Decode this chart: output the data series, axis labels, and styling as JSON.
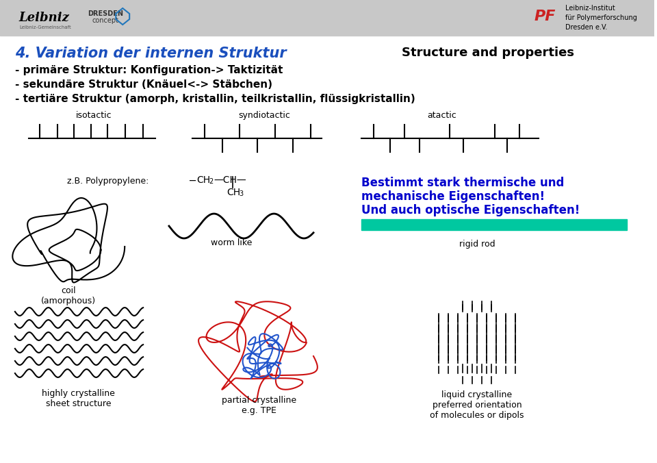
{
  "bg_color": "#ffffff",
  "header_bg": "#c8c8c8",
  "title_text": "4. Variation der internen Struktur",
  "title_color": "#1a4fbd",
  "subtitle_right": "Structure and properties",
  "bullet1": "- primäre Struktur: Konfiguration-> Taktizität",
  "bullet2": "- sekundäre Struktur (Knäuel<-> Stäbchen)",
  "bullet3": "- tertiäre Struktur (amorph, kristallin, teilkristallin, flüssigkristallin)",
  "label_isotactic": "isotactic",
  "label_syndiotactic": "syndiotactic",
  "label_atactic": "atactic",
  "polypropylene_label": "z.B. Polypropylene:",
  "highlight_text1": "Bestimmt stark thermische und",
  "highlight_text2": "mechanische Eigenschaften!",
  "highlight_text3": "Und auch optische Eigenschaften!",
  "highlight_color": "#0000cc",
  "green_bar_color": "#00c8a0",
  "label_coil": "coil\n(amorphous)",
  "label_worm": "worm like",
  "label_rigid": "rigid rod",
  "label_highly": "highly crystalline\nsheet structure",
  "label_partial": "partial crystalline\ne.g. TPE",
  "label_liquid": "liquid crystalline\npreferred orientation\nof molecules or dipols",
  "header_right_text": "Leibniz-Institut\nfür Polymerforschung\nDresden e.V.",
  "title_fontsize": 15,
  "bullet_fontsize": 11,
  "label_fontsize": 9
}
